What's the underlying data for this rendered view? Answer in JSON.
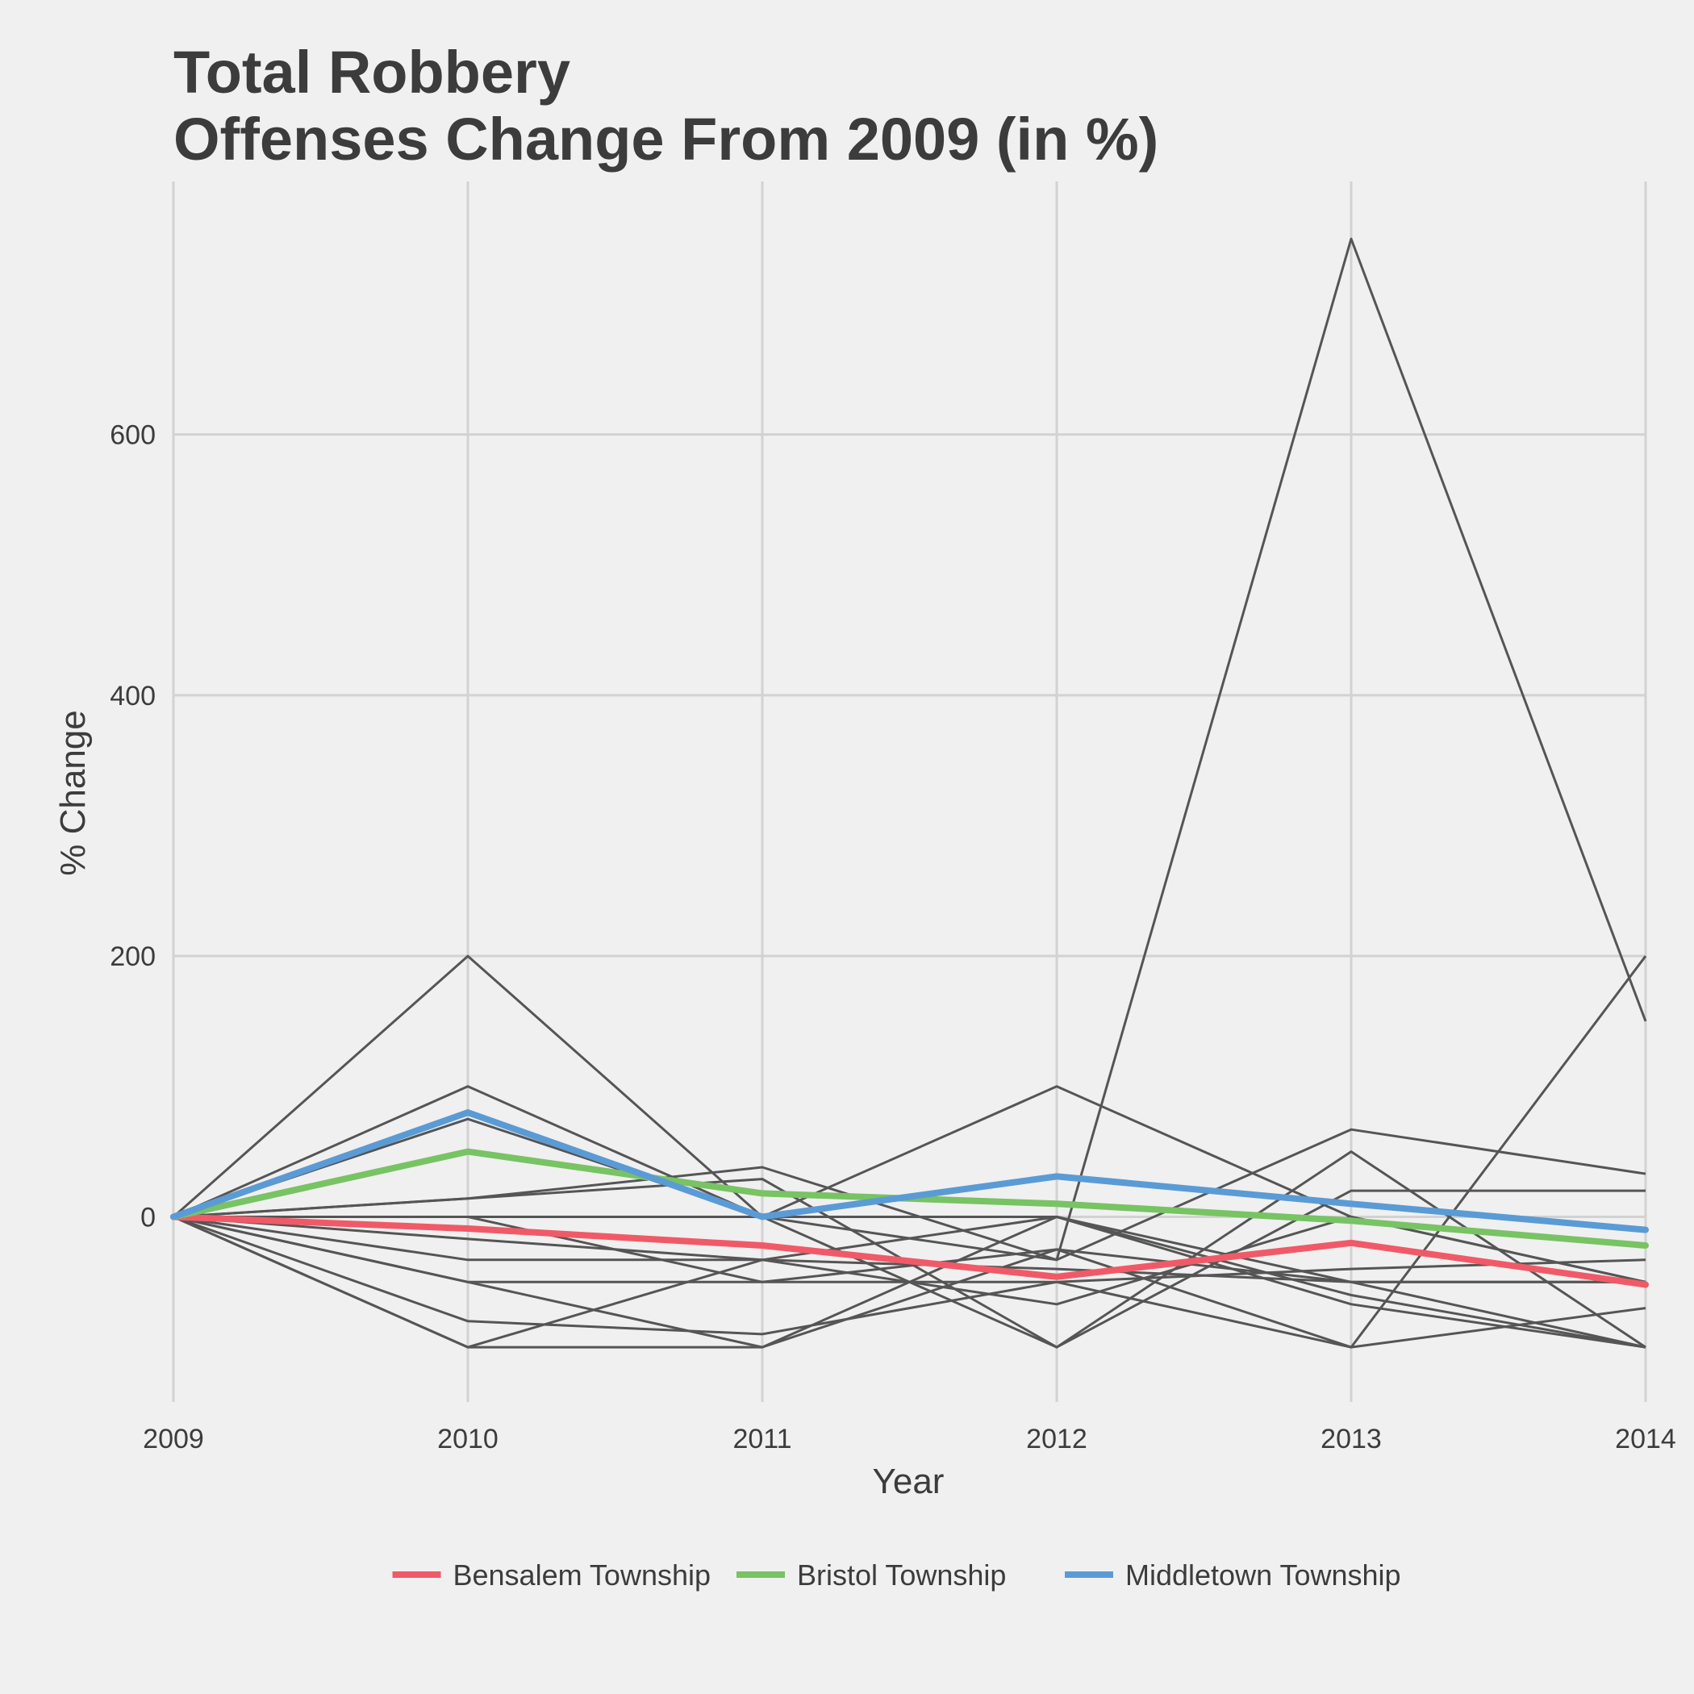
{
  "chart_data": {
    "type": "line",
    "title_lines": [
      "Total Robbery",
      "Offenses Change From 2009 (in %)"
    ],
    "xlabel": "Year",
    "ylabel": "% Change",
    "x": [
      2009,
      2010,
      2011,
      2012,
      2013,
      2014
    ],
    "x_tick_labels": [
      "2009",
      "2010",
      "2011",
      "2012",
      "2013",
      "2014"
    ],
    "y_ticks": [
      0,
      200,
      400,
      600
    ],
    "y_tick_labels": [
      "0",
      "200",
      "400",
      "600"
    ],
    "ylim": [
      -142,
      794
    ],
    "grid": true,
    "legend_position": "bottom",
    "background_series": [
      {
        "values": [
          0,
          200,
          0,
          -33,
          750,
          150
        ]
      },
      {
        "values": [
          0,
          100,
          0,
          -100,
          50,
          -100
        ]
      },
      {
        "values": [
          0,
          75,
          0,
          100,
          0,
          -50
        ]
      },
      {
        "values": [
          0,
          14,
          38,
          -33,
          67,
          33
        ]
      },
      {
        "values": [
          0,
          14,
          29,
          -100,
          20,
          20
        ]
      },
      {
        "values": [
          0,
          0,
          0,
          0,
          -50,
          -100
        ]
      },
      {
        "values": [
          0,
          0,
          -50,
          -25,
          -100,
          200
        ]
      },
      {
        "values": [
          0,
          -17,
          -33,
          -67,
          0,
          -50
        ]
      },
      {
        "values": [
          0,
          -33,
          -33,
          0,
          -60,
          -100
        ]
      },
      {
        "values": [
          0,
          -50,
          -100,
          0,
          -67,
          -100
        ]
      },
      {
        "values": [
          0,
          -80,
          -90,
          -50,
          -40,
          -33
        ]
      },
      {
        "values": [
          0,
          -100,
          -100,
          -25,
          -50,
          -50
        ]
      },
      {
        "values": [
          0,
          -100,
          -33,
          -40,
          -50,
          -50
        ]
      },
      {
        "values": [
          0,
          -50,
          -50,
          -50,
          -100,
          -70
        ]
      }
    ],
    "series": [
      {
        "name": "Bensalem Township",
        "color": "#f05a68",
        "values": [
          0,
          -9,
          -22,
          -46,
          -20,
          -52
        ]
      },
      {
        "name": "Bristol Township",
        "color": "#78c364",
        "values": [
          0,
          50,
          18,
          10,
          -3,
          -22
        ]
      },
      {
        "name": "Middletown Township",
        "color": "#5a9bd5",
        "values": [
          0,
          80,
          0,
          31,
          10,
          -10
        ]
      }
    ]
  }
}
